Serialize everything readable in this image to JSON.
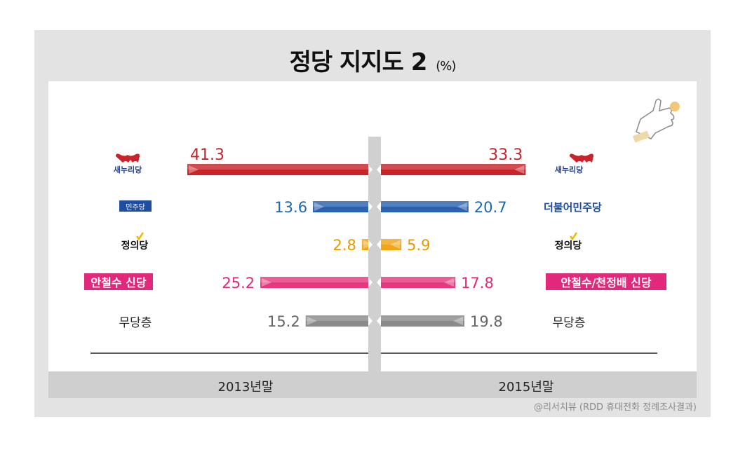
{
  "title": "정당 지지도 2",
  "title_unit": "(%)",
  "source": "@리서치뷰 (RDD 휴대전화 정례조사결과)",
  "colors": {
    "frame": "#e3e3e3",
    "axis_band": "#cfcfcf",
    "center_divider": "#d0d0d0"
  },
  "chart_data": {
    "type": "bar",
    "layout": "back-to-back horizontal bars",
    "series": [
      {
        "name": "2013년말",
        "values": [
          41.3,
          13.6,
          2.8,
          25.2,
          15.2
        ]
      },
      {
        "name": "2015년말",
        "values": [
          33.3,
          20.7,
          5.9,
          17.8,
          19.8
        ]
      }
    ],
    "parties_left": [
      "새누리당",
      "민주당",
      "정의당",
      "안철수 신당",
      "무당층"
    ],
    "parties_right": [
      "새누리당",
      "더불어민주당",
      "정의당",
      "안철수/천정배 신당",
      "무당층"
    ],
    "bar_colors": [
      "#c8242a",
      "#2a62b1",
      "#f2a516",
      "#e8397e",
      "#8a8a8a"
    ],
    "label_colors": [
      "#c8242a",
      "#1f67b2",
      "#e69a00",
      "#e2287a",
      "#666666"
    ],
    "xlim": [
      0,
      41.3
    ]
  }
}
